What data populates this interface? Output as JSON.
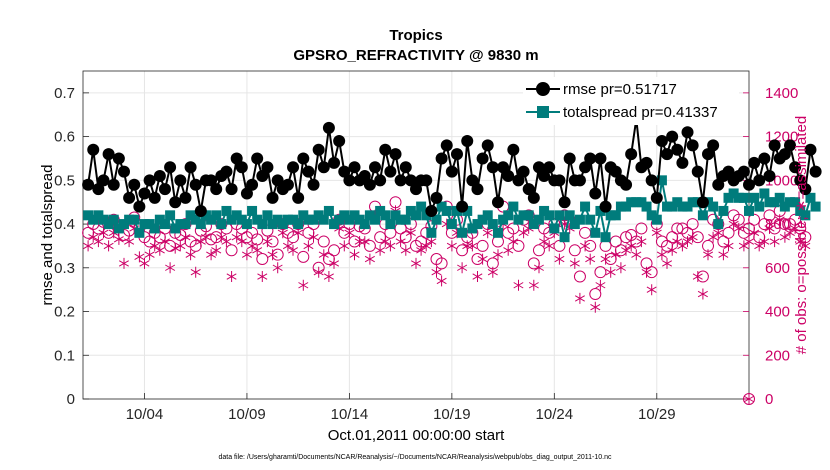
{
  "chart_data": {
    "type": "line",
    "title": "Tropics",
    "subtitle": "GPSRO_REFRACTIVITY @ 9830 m",
    "xlabel": "Oct.01,2011 00:00:00 start",
    "ylabel_left": "rmse and totalspread",
    "ylabel_right": "# of obs: o=possible; ∗=assimilated",
    "footnote": "data file: /Users/gharamti/Documents/NCAR/Reanalysis/~/Documents/NCAR/Reanalysis/webpub/obs_diag_output_2011-10.nc",
    "xlim": [
      1,
      33.5
    ],
    "ylim_left": [
      0,
      0.75
    ],
    "ylim_right": [
      0,
      1500
    ],
    "x_ticks": [
      4,
      9,
      14,
      19,
      24,
      29
    ],
    "x_tick_labels": [
      "10/04",
      "10/09",
      "10/14",
      "10/19",
      "10/24",
      "10/29"
    ],
    "y_left_ticks": [
      0,
      0.1,
      0.2,
      0.3,
      0.4,
      0.5,
      0.6,
      0.7
    ],
    "y_left_tick_labels": [
      "0",
      "0.1",
      "0.2",
      "0.3",
      "0.4",
      "0.5",
      "0.6",
      "0.7"
    ],
    "y_right_ticks": [
      0,
      200,
      400,
      600,
      800,
      1000,
      1200,
      1400
    ],
    "y_right_tick_labels": [
      "0",
      "200",
      "400",
      "600",
      "800",
      "1000",
      "1200",
      "1400"
    ],
    "x_start": 1.25,
    "x_step": 0.25,
    "colors": {
      "rmse": "#000000",
      "spread": "#007c7c",
      "obs": "#cc0066",
      "grid": "#e6e6e6"
    },
    "series": [
      {
        "name": "rmse",
        "legend": "rmse pr=0.51717",
        "axis": "left",
        "values": [
          0.49,
          0.57,
          0.48,
          0.5,
          0.56,
          0.49,
          0.55,
          0.52,
          0.46,
          0.49,
          0.44,
          0.47,
          0.5,
          0.46,
          0.51,
          0.48,
          0.53,
          0.45,
          0.5,
          0.46,
          0.53,
          0.49,
          0.43,
          0.5,
          0.5,
          0.48,
          0.51,
          0.52,
          0.48,
          0.55,
          0.53,
          0.47,
          0.49,
          0.55,
          0.51,
          0.53,
          0.46,
          0.5,
          0.48,
          0.49,
          0.53,
          0.46,
          0.55,
          0.52,
          0.49,
          0.57,
          0.53,
          0.62,
          0.54,
          0.59,
          0.52,
          0.5,
          0.53,
          0.5,
          0.51,
          0.49,
          0.53,
          0.5,
          0.57,
          0.52,
          0.56,
          0.5,
          0.53,
          0.5,
          0.48,
          0.5,
          0.5,
          0.43,
          0.46,
          0.55,
          0.58,
          0.52,
          0.56,
          0.44,
          0.59,
          0.5,
          0.48,
          0.55,
          0.58,
          0.53,
          0.45,
          0.53,
          0.51,
          0.57,
          0.5,
          0.52,
          0.48,
          0.46,
          0.53,
          0.51,
          0.53,
          0.5,
          0.5,
          0.45,
          0.55,
          0.5,
          0.5,
          0.53,
          0.55,
          0.47,
          0.55,
          0.44,
          0.53,
          0.52,
          0.5,
          0.49,
          0.56,
          0.64,
          0.53,
          0.54,
          0.5,
          0.46,
          0.59,
          0.56,
          0.6,
          0.57,
          0.54,
          0.61,
          0.58,
          0.52,
          0.45,
          0.56,
          0.58,
          0.49,
          0.51,
          0.52,
          0.5,
          0.51,
          0.52,
          0.49,
          0.54,
          0.5,
          0.55,
          0.51,
          0.58,
          0.55,
          0.56,
          0.58,
          0.53,
          0.5,
          0.48,
          0.57,
          0.52
        ]
      },
      {
        "name": "totalspread",
        "legend": "totalspread pr=0.41337",
        "axis": "left",
        "values": [
          0.42,
          0.41,
          0.42,
          0.41,
          0.4,
          0.41,
          0.39,
          0.4,
          0.41,
          0.41,
          0.38,
          0.4,
          0.4,
          0.39,
          0.41,
          0.4,
          0.42,
          0.39,
          0.4,
          0.4,
          0.42,
          0.41,
          0.4,
          0.42,
          0.41,
          0.42,
          0.4,
          0.43,
          0.41,
          0.42,
          0.41,
          0.4,
          0.43,
          0.41,
          0.4,
          0.42,
          0.4,
          0.41,
          0.4,
          0.41,
          0.41,
          0.4,
          0.42,
          0.41,
          0.41,
          0.42,
          0.41,
          0.43,
          0.4,
          0.41,
          0.42,
          0.41,
          0.42,
          0.41,
          0.4,
          0.42,
          0.41,
          0.43,
          0.42,
          0.4,
          0.42,
          0.41,
          0.41,
          0.43,
          0.42,
          0.44,
          0.42,
          0.38,
          0.41,
          0.44,
          0.43,
          0.4,
          0.43,
          0.38,
          0.43,
          0.39,
          0.4,
          0.41,
          0.42,
          0.4,
          0.38,
          0.41,
          0.42,
          0.44,
          0.41,
          0.42,
          0.42,
          0.4,
          0.41,
          0.43,
          0.42,
          0.39,
          0.42,
          0.37,
          0.42,
          0.4,
          0.41,
          0.44,
          0.41,
          0.38,
          0.43,
          0.37,
          0.42,
          0.42,
          0.44,
          0.44,
          0.45,
          0.45,
          0.45,
          0.44,
          0.42,
          0.41,
          0.5,
          0.44,
          0.44,
          0.45,
          0.44,
          0.44,
          0.45,
          0.45,
          0.42,
          0.45,
          0.44,
          0.4,
          0.43,
          0.46,
          0.47,
          0.46,
          0.46,
          0.43,
          0.46,
          0.44,
          0.47,
          0.45,
          0.45,
          0.46,
          0.44,
          0.45,
          0.45,
          0.43,
          0.42,
          0.46,
          0.44
        ]
      },
      {
        "name": "possible",
        "legend": "",
        "axis": "right",
        "marker": "circle",
        "values": [
          760,
          800,
          780,
          810,
          760,
          820,
          790,
          750,
          770,
          830,
          780,
          740,
          720,
          760,
          740,
          780,
          700,
          760,
          750,
          800,
          720,
          700,
          770,
          790,
          730,
          740,
          800,
          780,
          680,
          800,
          780,
          740,
          760,
          730,
          640,
          770,
          720,
          660,
          800,
          760,
          740,
          800,
          650,
          760,
          800,
          600,
          720,
          640,
          680,
          820,
          760,
          800,
          720,
          790,
          780,
          700,
          880,
          740,
          800,
          760,
          900,
          780,
          740,
          800,
          700,
          720,
          760,
          790,
          640,
          620,
          880,
          760,
          820,
          680,
          740,
          760,
          640,
          700,
          800,
          620,
          720,
          880,
          760,
          780,
          700,
          820,
          840,
          620,
          680,
          780,
          760,
          800,
          700,
          840,
          820,
          680,
          560,
          760,
          700,
          480,
          580,
          700,
          640,
          720,
          680,
          740,
          750,
          720,
          780,
          620,
          580,
          800,
          720,
          700,
          740,
          780,
          780,
          760,
          800,
          740,
          560,
          700,
          820,
          800,
          720,
          760,
          840,
          820,
          760,
          780,
          820,
          740,
          800,
          840,
          780,
          860,
          800,
          800,
          820,
          780,
          740
        ]
      },
      {
        "name": "assimilated",
        "legend": "",
        "axis": "right",
        "marker": "asterisk",
        "values": [
          700,
          740,
          720,
          760,
          700,
          760,
          730,
          620,
          720,
          780,
          650,
          620,
          660,
          700,
          680,
          720,
          600,
          690,
          700,
          740,
          660,
          580,
          720,
          740,
          660,
          680,
          740,
          720,
          560,
          740,
          720,
          660,
          700,
          680,
          560,
          720,
          660,
          600,
          760,
          700,
          680,
          760,
          520,
          700,
          740,
          580,
          660,
          560,
          620,
          780,
          700,
          760,
          660,
          720,
          720,
          640,
          840,
          680,
          720,
          700,
          860,
          720,
          680,
          760,
          620,
          680,
          700,
          720,
          580,
          540,
          800,
          700,
          760,
          600,
          700,
          700,
          560,
          640,
          760,
          580,
          660,
          800,
          680,
          720,
          520,
          760,
          780,
          520,
          600,
          720,
          700,
          760,
          640,
          800,
          780,
          620,
          460,
          700,
          640,
          420,
          520,
          640,
          580,
          660,
          600,
          680,
          700,
          660,
          720,
          580,
          500,
          760,
          660,
          620,
          680,
          720,
          700,
          720,
          740,
          560,
          480,
          660,
          740,
          760,
          660,
          700,
          800,
          780,
          700,
          720,
          760,
          700,
          720,
          780,
          720,
          820,
          740,
          760,
          780,
          720,
          700
        ]
      }
    ]
  }
}
